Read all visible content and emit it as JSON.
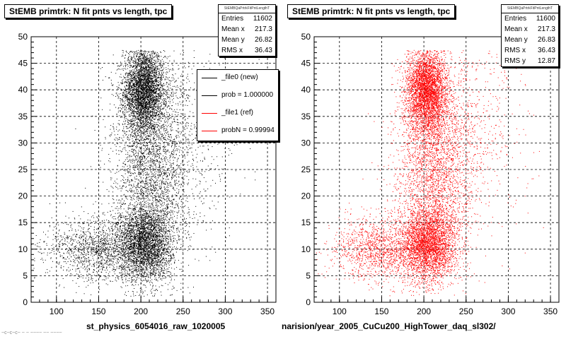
{
  "chart_data": [
    {
      "type": "scatter",
      "title": "StEMB primtrk: N fit pnts vs length, tpc",
      "stats_header": "StEMBQaPrtrkFitPntLengthT",
      "xlabel": "st_physics_6054016_raw_1020005",
      "ylabel": "",
      "xlim": [
        70,
        360
      ],
      "ylim": [
        0,
        50
      ],
      "xticks": [
        100,
        150,
        200,
        250,
        300,
        350
      ],
      "yticks": [
        0,
        5,
        10,
        15,
        20,
        25,
        30,
        35,
        40,
        45,
        50
      ],
      "grid": true,
      "marker_color": "#000000",
      "stats": [
        {
          "label": "Entries",
          "value": "11602"
        },
        {
          "label": "Mean x",
          "value": "217.3"
        },
        {
          "label": "Mean y",
          "value": "26.82"
        },
        {
          "label": "RMS x",
          "value": "36.43"
        }
      ],
      "legend": {
        "placement": "top-right",
        "entries": [
          {
            "label": "_file0 (new)",
            "color": "#000000"
          },
          {
            "label": "prob = 1.000000",
            "color": "#000000"
          },
          {
            "label": "_file1 (ref)",
            "color": "#ff0000"
          },
          {
            "label": "probN = 0.99994",
            "color": "#ff0000"
          }
        ]
      },
      "clusters": [
        {
          "x": 203,
          "y": 40,
          "sx": 12,
          "sy": 4,
          "n": 3600
        },
        {
          "x": 205,
          "y": 11,
          "sx": 16,
          "sy": 3.5,
          "n": 3000
        },
        {
          "x": 212,
          "y": 25,
          "sx": 22,
          "sy": 10,
          "n": 2800
        },
        {
          "x": 150,
          "y": 10,
          "sx": 30,
          "sy": 3,
          "n": 1400
        },
        {
          "x": 245,
          "y": 32,
          "sx": 35,
          "sy": 10,
          "n": 800
        }
      ]
    },
    {
      "type": "scatter",
      "title": "StEMB primtrk: N fit pnts vs length, tpc",
      "stats_header": "StEMBQaPrtrkFitPntLengthT",
      "xlabel": "narision/year_2005_CuCu200_HighTower_daq_sl302/",
      "ylabel": "",
      "xlim": [
        70,
        360
      ],
      "ylim": [
        0,
        50
      ],
      "xticks": [
        100,
        150,
        200,
        250,
        300,
        350
      ],
      "yticks": [
        0,
        5,
        10,
        15,
        20,
        25,
        30,
        35,
        40,
        45,
        50
      ],
      "grid": true,
      "marker_color": "#ff0000",
      "stats": [
        {
          "label": "Entries",
          "value": "11600"
        },
        {
          "label": "Mean x",
          "value": "217.3"
        },
        {
          "label": "Mean y",
          "value": "26.83"
        },
        {
          "label": "RMS x",
          "value": "36.43"
        },
        {
          "label": "RMS y",
          "value": "12.87"
        }
      ],
      "clusters": [
        {
          "x": 203,
          "y": 40,
          "sx": 12,
          "sy": 4,
          "n": 3600
        },
        {
          "x": 205,
          "y": 11,
          "sx": 16,
          "sy": 3.5,
          "n": 3000
        },
        {
          "x": 212,
          "y": 25,
          "sx": 22,
          "sy": 10,
          "n": 2800
        },
        {
          "x": 150,
          "y": 10,
          "sx": 30,
          "sy": 3,
          "n": 1400
        },
        {
          "x": 245,
          "y": 32,
          "sx": 35,
          "sy": 10,
          "n": 800
        }
      ]
    }
  ],
  "footer": "~c~c~c~ ~ ~ ~~~~ ~~ ~~~~"
}
